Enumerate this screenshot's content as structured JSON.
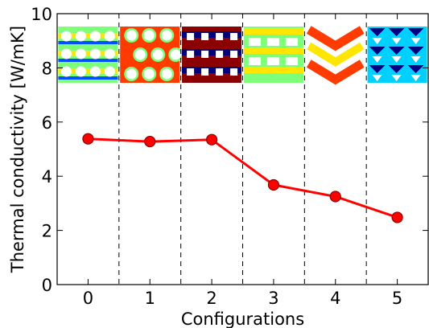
{
  "chart_data": {
    "type": "line",
    "title": "",
    "xlabel": "Configurations",
    "ylabel": "Thermal conductivity [W/mK]",
    "x": [
      0,
      1,
      2,
      3,
      4,
      5
    ],
    "xticks": [
      "0",
      "1",
      "2",
      "3",
      "4",
      "5"
    ],
    "yticks": [
      "0",
      "2",
      "4",
      "6",
      "8",
      "10"
    ],
    "xlim": [
      -0.5,
      5.5
    ],
    "ylim": [
      0,
      10
    ],
    "grid": false,
    "separators_at": [
      0.5,
      1.5,
      2.5,
      3.5,
      4.5
    ],
    "series": [
      {
        "values": [
          5.38,
          5.28,
          5.35,
          3.68,
          3.25,
          2.48
        ],
        "color": "#ff0000",
        "marker_edge": "#8b0000"
      }
    ],
    "inset_images": [
      {
        "config": 0,
        "pattern": "circular-holes-grid"
      },
      {
        "config": 1,
        "pattern": "staggered-circular-holes"
      },
      {
        "config": 2,
        "pattern": "square-holes-grid"
      },
      {
        "config": 3,
        "pattern": "rectangular-slots"
      },
      {
        "config": 4,
        "pattern": "zigzag-chain"
      },
      {
        "config": 5,
        "pattern": "triangular-holes"
      }
    ],
    "colormap": [
      "#00007f",
      "#0050ff",
      "#00d0ff",
      "#7dff7a",
      "#ffe600",
      "#ff3b00",
      "#8b0000"
    ]
  }
}
